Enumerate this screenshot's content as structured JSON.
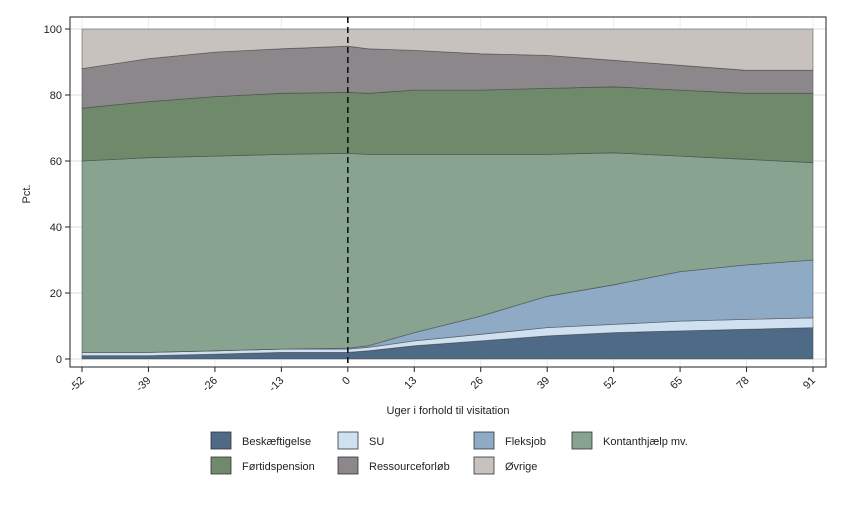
{
  "chart_data": {
    "type": "area",
    "stacked": true,
    "xlabel": "Uger i forhold til visitation",
    "ylabel": "Pct.",
    "xlim": [
      -52,
      91
    ],
    "ylim": [
      0,
      100
    ],
    "xticks": [
      "-52",
      "-39",
      "-26",
      "-13",
      "0",
      "13",
      "26",
      "39",
      "52",
      "65",
      "78",
      "91"
    ],
    "yticks": [
      "0",
      "20",
      "40",
      "60",
      "80",
      "100"
    ],
    "grid": true,
    "reference_line": {
      "x": 0,
      "style": "dashed"
    },
    "legend_position": "bottom",
    "x": [
      -52,
      -39,
      -26,
      -13,
      0,
      4,
      13,
      26,
      39,
      52,
      65,
      78,
      91
    ],
    "series": [
      {
        "name": "Beskæftigelse",
        "color": "#4f6a87",
        "values": [
          1,
          1,
          1.5,
          2,
          2,
          2.5,
          4,
          5.5,
          7,
          8,
          8.5,
          9,
          9.5
        ]
      },
      {
        "name": "SU",
        "color": "#cfe0f0",
        "values": [
          1,
          1,
          1,
          1,
          1,
          1,
          1.5,
          2,
          2.5,
          2.5,
          3,
          3,
          3
        ]
      },
      {
        "name": "Fleksjob",
        "color": "#8eaac5",
        "values": [
          0,
          0,
          0,
          0,
          0.3,
          0.5,
          2.5,
          5.5,
          9.5,
          12,
          15,
          16.5,
          17.5
        ]
      },
      {
        "name": "Kontanthjælp mv.",
        "color": "#88a490",
        "values": [
          58,
          59,
          59,
          59,
          59,
          58,
          54,
          49,
          43,
          40,
          35,
          32,
          29.5
        ]
      },
      {
        "name": "Førtidspension",
        "color": "#6e8a6a",
        "values": [
          16,
          17,
          18,
          18.5,
          18.5,
          18.5,
          19.5,
          19.5,
          20,
          20,
          20,
          20,
          21
        ]
      },
      {
        "name": "Ressourceforløb",
        "color": "#8c878b",
        "values": [
          12,
          13,
          13.5,
          13.5,
          14,
          13.5,
          12,
          11,
          10,
          8,
          7.5,
          7,
          7
        ]
      },
      {
        "name": "Øvrige",
        "color": "#c7c2be",
        "values": [
          12,
          9,
          7,
          6,
          5.2,
          6,
          6.5,
          7.5,
          8,
          9.5,
          11,
          12.5,
          12.5
        ]
      }
    ]
  }
}
